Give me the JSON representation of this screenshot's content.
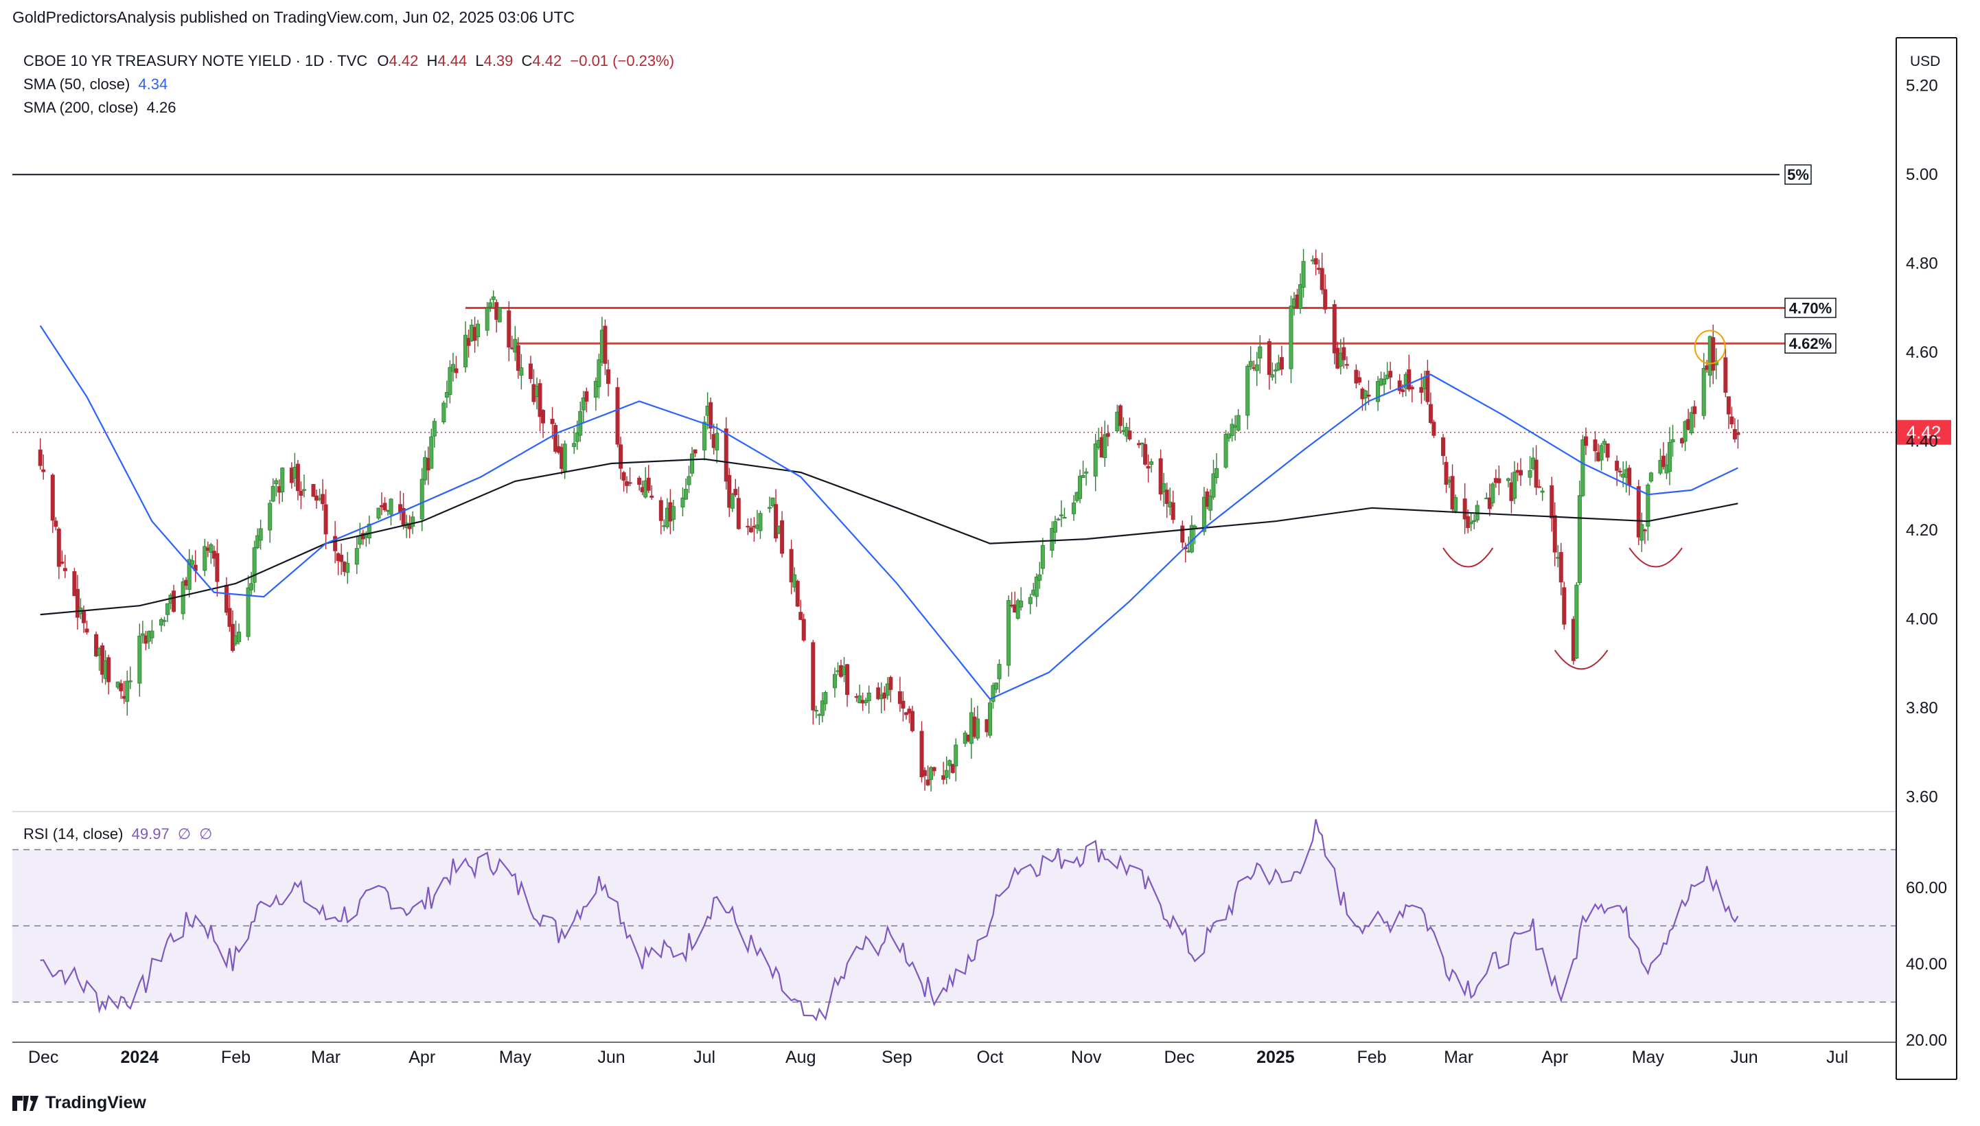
{
  "publisher": "GoldPredictorsAnalysis published on TradingView.com, Jun 02, 2025 03:06 UTC",
  "legend": {
    "symbol": "CBOE 10 YR TREASURY NOTE YIELD · 1D · TVC",
    "open_label": "O",
    "open": "4.42",
    "high_label": "H",
    "high": "4.44",
    "low_label": "L",
    "low": "4.39",
    "close_label": "C",
    "close": "4.42",
    "change": "−0.01 (−0.23%)",
    "sma50_label": "SMA (50, close)",
    "sma50_value": "4.34",
    "sma200_label": "SMA (200, close)",
    "sma200_value": "4.26",
    "rsi_label": "RSI (14, close)",
    "rsi_value": "49.97",
    "rsi_extra1": "∅",
    "rsi_extra2": "∅"
  },
  "currency": "USD",
  "footer": {
    "brand": "TradingView"
  },
  "colors": {
    "up": "#26a69a",
    "up_body": "#2e7d32",
    "down": "#b22833",
    "sma50": "#2962ff",
    "sma200": "#131722",
    "rsi": "#7e57c2",
    "resistance": "#e53935",
    "current_price": "#f23645"
  },
  "chart_data": {
    "type": "candlestick",
    "price_axis": {
      "ticks": [
        "5.20",
        "5.00",
        "4.80",
        "4.60",
        "4.40",
        "4.20",
        "4.00",
        "3.80",
        "3.60"
      ],
      "ylim": [
        3.57,
        5.3
      ]
    },
    "current_price": "4.42",
    "time_axis": [
      "Dec",
      "2024",
      "Feb",
      "Mar",
      "Apr",
      "May",
      "Jun",
      "Jul",
      "Aug",
      "Sep",
      "Oct",
      "Nov",
      "Dec",
      "2025",
      "Feb",
      "Mar",
      "Apr",
      "May",
      "Jun",
      "Jul"
    ],
    "levels": [
      {
        "label": "5%",
        "value": 5.0
      },
      {
        "label": "4.70%",
        "value": 4.7
      },
      {
        "label": "4.62%",
        "value": 4.62
      }
    ],
    "close_path": [
      [
        "2023-11-30",
        4.38
      ],
      [
        "2023-12-06",
        4.14
      ],
      [
        "2023-12-13",
        4.02
      ],
      [
        "2023-12-20",
        3.88
      ],
      [
        "2023-12-27",
        3.82
      ],
      [
        "2024-01-02",
        3.95
      ],
      [
        "2024-01-10",
        4.02
      ],
      [
        "2024-01-17",
        4.1
      ],
      [
        "2024-01-24",
        4.18
      ],
      [
        "2024-01-31",
        3.92
      ],
      [
        "2024-02-06",
        4.1
      ],
      [
        "2024-02-13",
        4.3
      ],
      [
        "2024-02-21",
        4.32
      ],
      [
        "2024-02-28",
        4.26
      ],
      [
        "2024-03-06",
        4.12
      ],
      [
        "2024-03-13",
        4.2
      ],
      [
        "2024-03-20",
        4.28
      ],
      [
        "2024-03-27",
        4.2
      ],
      [
        "2024-04-03",
        4.36
      ],
      [
        "2024-04-10",
        4.55
      ],
      [
        "2024-04-17",
        4.64
      ],
      [
        "2024-04-25",
        4.7
      ],
      [
        "2024-05-02",
        4.58
      ],
      [
        "2024-05-09",
        4.48
      ],
      [
        "2024-05-16",
        4.36
      ],
      [
        "2024-05-23",
        4.47
      ],
      [
        "2024-05-29",
        4.62
      ],
      [
        "2024-06-05",
        4.28
      ],
      [
        "2024-06-12",
        4.3
      ],
      [
        "2024-06-19",
        4.23
      ],
      [
        "2024-06-26",
        4.32
      ],
      [
        "2024-07-02",
        4.46
      ],
      [
        "2024-07-09",
        4.28
      ],
      [
        "2024-07-16",
        4.18
      ],
      [
        "2024-07-23",
        4.24
      ],
      [
        "2024-07-31",
        4.04
      ],
      [
        "2024-08-05",
        3.78
      ],
      [
        "2024-08-12",
        3.9
      ],
      [
        "2024-08-19",
        3.82
      ],
      [
        "2024-08-26",
        3.84
      ],
      [
        "2024-09-03",
        3.82
      ],
      [
        "2024-09-10",
        3.65
      ],
      [
        "2024-09-16",
        3.63
      ],
      [
        "2024-09-23",
        3.75
      ],
      [
        "2024-09-30",
        3.78
      ],
      [
        "2024-10-07",
        4.03
      ],
      [
        "2024-10-14",
        4.08
      ],
      [
        "2024-10-21",
        4.2
      ],
      [
        "2024-10-28",
        4.28
      ],
      [
        "2024-11-04",
        4.38
      ],
      [
        "2024-11-12",
        4.44
      ],
      [
        "2024-11-19",
        4.4
      ],
      [
        "2024-11-26",
        4.28
      ],
      [
        "2024-12-04",
        4.18
      ],
      [
        "2024-12-11",
        4.27
      ],
      [
        "2024-12-18",
        4.45
      ],
      [
        "2024-12-26",
        4.59
      ],
      [
        "2025-01-02",
        4.57
      ],
      [
        "2025-01-10",
        4.77
      ],
      [
        "2025-01-14",
        4.79
      ],
      [
        "2025-01-21",
        4.57
      ],
      [
        "2025-01-28",
        4.53
      ],
      [
        "2025-02-04",
        4.51
      ],
      [
        "2025-02-11",
        4.53
      ],
      [
        "2025-02-18",
        4.54
      ],
      [
        "2025-02-25",
        4.3
      ],
      [
        "2025-03-04",
        4.23
      ],
      [
        "2025-03-11",
        4.28
      ],
      [
        "2025-03-18",
        4.3
      ],
      [
        "2025-03-25",
        4.33
      ],
      [
        "2025-04-01",
        4.17
      ],
      [
        "2025-04-04",
        4.0
      ],
      [
        "2025-04-07",
        3.93
      ],
      [
        "2025-04-10",
        4.41
      ],
      [
        "2025-04-14",
        4.38
      ],
      [
        "2025-04-22",
        4.35
      ],
      [
        "2025-04-29",
        4.19
      ],
      [
        "2025-05-02",
        4.31
      ],
      [
        "2025-05-09",
        4.38
      ],
      [
        "2025-05-16",
        4.45
      ],
      [
        "2025-05-21",
        4.61
      ],
      [
        "2025-05-27",
        4.45
      ],
      [
        "2025-05-30",
        4.42
      ]
    ],
    "sma50_path": [
      [
        "2023-11-30",
        4.66
      ],
      [
        "2023-12-15",
        4.5
      ],
      [
        "2024-01-05",
        4.22
      ],
      [
        "2024-01-25",
        4.06
      ],
      [
        "2024-02-10",
        4.05
      ],
      [
        "2024-03-01",
        4.17
      ],
      [
        "2024-03-25",
        4.24
      ],
      [
        "2024-04-20",
        4.32
      ],
      [
        "2024-05-15",
        4.42
      ],
      [
        "2024-06-10",
        4.49
      ],
      [
        "2024-07-05",
        4.43
      ],
      [
        "2024-08-01",
        4.32
      ],
      [
        "2024-09-01",
        4.08
      ],
      [
        "2024-10-01",
        3.82
      ],
      [
        "2024-10-20",
        3.88
      ],
      [
        "2024-11-15",
        4.04
      ],
      [
        "2024-12-10",
        4.21
      ],
      [
        "2025-01-10",
        4.38
      ],
      [
        "2025-01-31",
        4.49
      ],
      [
        "2025-02-20",
        4.55
      ],
      [
        "2025-03-15",
        4.46
      ],
      [
        "2025-04-10",
        4.35
      ],
      [
        "2025-05-01",
        4.28
      ],
      [
        "2025-05-15",
        4.29
      ],
      [
        "2025-05-30",
        4.34
      ]
    ],
    "sma200_path": [
      [
        "2023-11-30",
        4.01
      ],
      [
        "2024-01-01",
        4.03
      ],
      [
        "2024-02-01",
        4.08
      ],
      [
        "2024-03-01",
        4.17
      ],
      [
        "2024-04-01",
        4.22
      ],
      [
        "2024-05-01",
        4.31
      ],
      [
        "2024-06-01",
        4.35
      ],
      [
        "2024-07-01",
        4.36
      ],
      [
        "2024-08-01",
        4.33
      ],
      [
        "2024-09-01",
        4.25
      ],
      [
        "2024-10-01",
        4.17
      ],
      [
        "2024-11-01",
        4.18
      ],
      [
        "2024-12-01",
        4.2
      ],
      [
        "2025-01-01",
        4.22
      ],
      [
        "2025-02-01",
        4.25
      ],
      [
        "2025-03-01",
        4.24
      ],
      [
        "2025-04-01",
        4.23
      ],
      [
        "2025-05-01",
        4.22
      ],
      [
        "2025-05-30",
        4.26
      ]
    ],
    "rsi": {
      "ticks": [
        "60.00",
        "40.00",
        "20.00"
      ],
      "band": [
        30,
        70
      ],
      "ylim": [
        20,
        80
      ],
      "path": [
        [
          "2023-11-30",
          41
        ],
        [
          "2023-12-10",
          37
        ],
        [
          "2023-12-20",
          30
        ],
        [
          "2024-01-01",
          32
        ],
        [
          "2024-01-10",
          46
        ],
        [
          "2024-01-20",
          53
        ],
        [
          "2024-01-31",
          40
        ],
        [
          "2024-02-10",
          57
        ],
        [
          "2024-02-20",
          60
        ],
        [
          "2024-03-01",
          52
        ],
        [
          "2024-03-10",
          54
        ],
        [
          "2024-03-20",
          59
        ],
        [
          "2024-03-30",
          53
        ],
        [
          "2024-04-10",
          64
        ],
        [
          "2024-04-25",
          67
        ],
        [
          "2024-05-05",
          57
        ],
        [
          "2024-05-15",
          48
        ],
        [
          "2024-05-30",
          63
        ],
        [
          "2024-06-10",
          42
        ],
        [
          "2024-06-25",
          44
        ],
        [
          "2024-07-05",
          58
        ],
        [
          "2024-07-20",
          40
        ],
        [
          "2024-08-05",
          23
        ],
        [
          "2024-08-20",
          44
        ],
        [
          "2024-09-01",
          47
        ],
        [
          "2024-09-12",
          32
        ],
        [
          "2024-09-25",
          40
        ],
        [
          "2024-10-08",
          65
        ],
        [
          "2024-10-20",
          67
        ],
        [
          "2024-11-05",
          70
        ],
        [
          "2024-11-15",
          65
        ],
        [
          "2024-11-25",
          56
        ],
        [
          "2024-12-06",
          42
        ],
        [
          "2024-12-15",
          52
        ],
        [
          "2024-12-26",
          66
        ],
        [
          "2025-01-05",
          60
        ],
        [
          "2025-01-14",
          75
        ],
        [
          "2025-01-25",
          52
        ],
        [
          "2025-02-05",
          50
        ],
        [
          "2025-02-15",
          58
        ],
        [
          "2025-02-25",
          40
        ],
        [
          "2025-03-05",
          34
        ],
        [
          "2025-03-15",
          42
        ],
        [
          "2025-03-25",
          49
        ],
        [
          "2025-04-04",
          30
        ],
        [
          "2025-04-12",
          58
        ],
        [
          "2025-04-22",
          55
        ],
        [
          "2025-05-01",
          40
        ],
        [
          "2025-05-10",
          52
        ],
        [
          "2025-05-20",
          64
        ],
        [
          "2025-05-30",
          50
        ]
      ]
    }
  }
}
